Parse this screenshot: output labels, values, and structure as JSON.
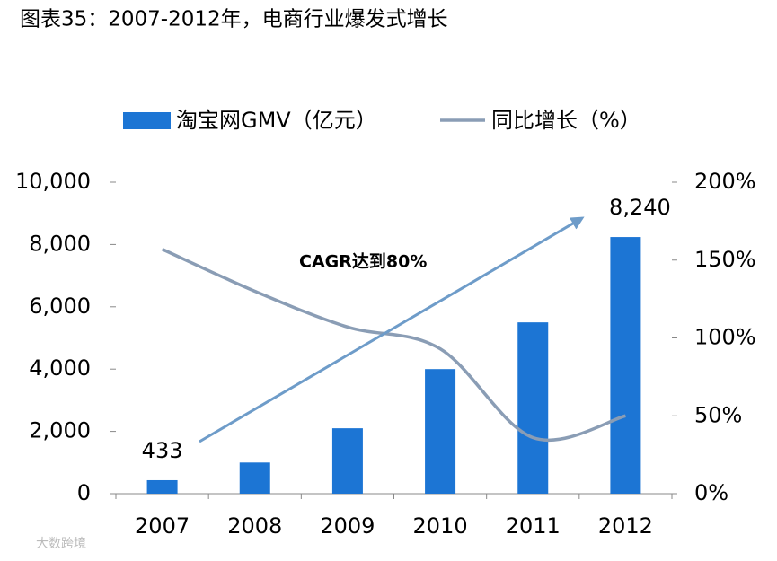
{
  "chart_data": {
    "type": "bar-line",
    "title": "图表35：2007-2012年，电商行业爆发式增长",
    "categories": [
      "2007",
      "2008",
      "2009",
      "2010",
      "2011",
      "2012"
    ],
    "series": [
      {
        "name": "淘宝网GMV（亿元）",
        "type": "bar",
        "color": "#1c75d4",
        "values": [
          433,
          1000,
          2100,
          4000,
          5500,
          8240
        ],
        "value_labels": [
          "433",
          null,
          null,
          null,
          null,
          "8,240"
        ]
      },
      {
        "name": "同比增长（%）",
        "type": "line",
        "axis": "y2",
        "color": "#8a9db5",
        "values": [
          157,
          130,
          107,
          93,
          36,
          50
        ]
      }
    ],
    "ylim": [
      0,
      10000
    ],
    "yticks": [
      0,
      {
        "value": 2000,
        "label": "2,000"
      },
      {
        "value": 4000,
        "label": "4,000"
      },
      {
        "value": 6000,
        "label": "6,000"
      },
      {
        "value": 8000,
        "label": "8,000"
      },
      {
        "value": 10000,
        "label": "10,000"
      }
    ],
    "y2lim": [
      0,
      200
    ],
    "y2ticks": [
      {
        "value": 0,
        "label": "0%"
      },
      {
        "value": 50,
        "label": "50%"
      },
      {
        "value": 100,
        "label": "100%"
      },
      {
        "value": 150,
        "label": "150%"
      },
      {
        "value": 200,
        "label": "200%"
      }
    ],
    "annotation": "CAGR达到80%",
    "watermark": "大数跨境",
    "legend": "top"
  }
}
